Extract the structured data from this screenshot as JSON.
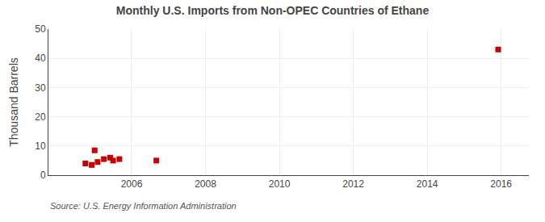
{
  "chart_data": {
    "type": "scatter",
    "title": "Monthly U.S. Imports from Non-OPEC Countries of Ethane",
    "ylabel": "Thousand Barrels",
    "annotations": [
      "Source: U.S. Energy Information Administration"
    ],
    "x": [
      2004.75,
      2004.92,
      2005.0,
      2005.08,
      2005.25,
      2005.42,
      2005.5,
      2005.67,
      2006.67,
      2015.92
    ],
    "values": [
      4.0,
      3.5,
      8.5,
      4.5,
      5.5,
      6.0,
      5.0,
      5.5,
      5.0,
      43.0
    ],
    "color": "#cc0000",
    "marker": "square",
    "xlim": [
      2003.75,
      2016.75
    ],
    "xticks": [
      2006,
      2008,
      2010,
      2012,
      2014,
      2016
    ],
    "ylim": [
      0,
      50
    ],
    "yticks": [
      0,
      10,
      20,
      30,
      40,
      50
    ],
    "grid": true
  }
}
